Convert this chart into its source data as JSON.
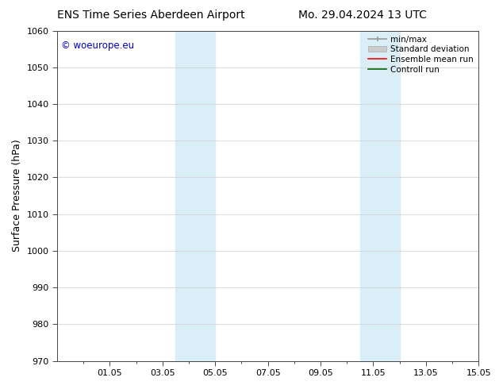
{
  "title_left": "ENS Time Series Aberdeen Airport",
  "title_right": "Mo. 29.04.2024 13 UTC",
  "ylabel": "Surface Pressure (hPa)",
  "ylim": [
    970,
    1060
  ],
  "yticks": [
    970,
    980,
    990,
    1000,
    1010,
    1020,
    1030,
    1040,
    1050,
    1060
  ],
  "xtick_labels": [
    "01.05",
    "03.05",
    "05.05",
    "07.05",
    "09.05",
    "11.05",
    "13.05",
    "15.05"
  ],
  "xtick_positions": [
    2,
    4,
    6,
    8,
    10,
    12,
    14,
    16
  ],
  "xlim": [
    0,
    16
  ],
  "background_color": "#ffffff",
  "plot_bg_color": "#ffffff",
  "shaded_bands": [
    {
      "x_start": 4.5,
      "x_end": 6.0,
      "color": "#daeef8"
    },
    {
      "x_start": 11.5,
      "x_end": 13.0,
      "color": "#daeef8"
    }
  ],
  "watermark_text": "© woeurope.eu",
  "watermark_color": "#0000cc",
  "grid_color": "#cccccc",
  "tick_fontsize": 8,
  "label_fontsize": 9,
  "title_fontsize": 10
}
